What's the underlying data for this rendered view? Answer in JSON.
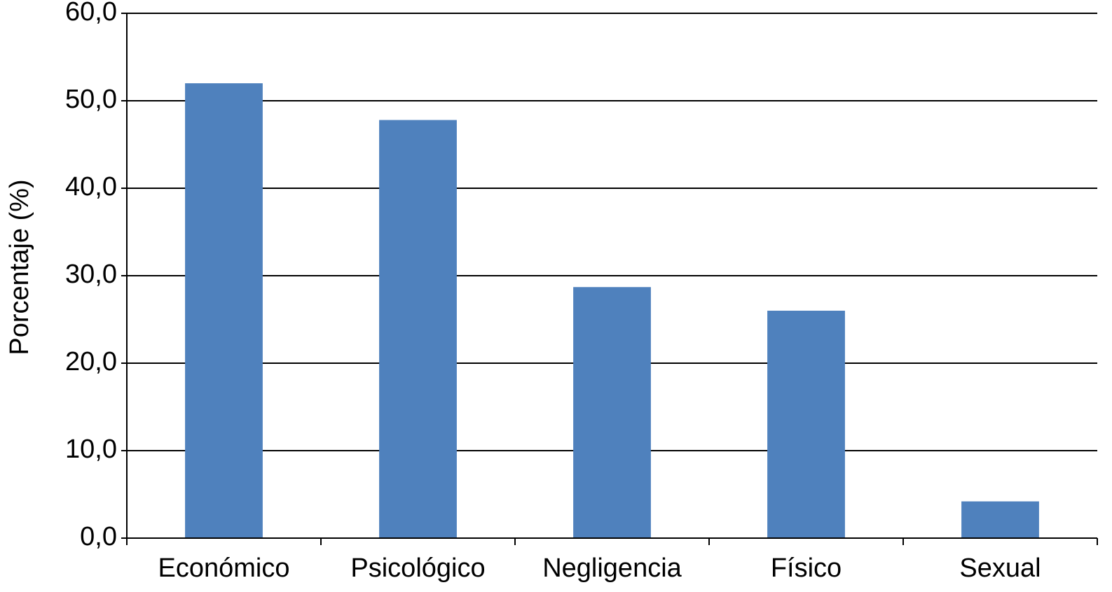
{
  "chart_data": {
    "type": "bar",
    "y_label": "Porcentaje (%)",
    "categories": [
      "Económico",
      "Psicológico",
      "Negligencia",
      "Físico",
      "Sexual"
    ],
    "values": [
      52.0,
      47.8,
      28.7,
      26.0,
      4.2
    ],
    "color": "#4f81bd",
    "ylim": [
      0,
      60
    ],
    "yticks": [
      {
        "value": 0,
        "label": "0,0"
      },
      {
        "value": 10,
        "label": "10,0"
      },
      {
        "value": 20,
        "label": "20,0"
      },
      {
        "value": 30,
        "label": "30,0"
      },
      {
        "value": 40,
        "label": "40,0"
      },
      {
        "value": 50,
        "label": "50,0"
      },
      {
        "value": 60,
        "label": "60,0"
      }
    ],
    "grid": true
  }
}
